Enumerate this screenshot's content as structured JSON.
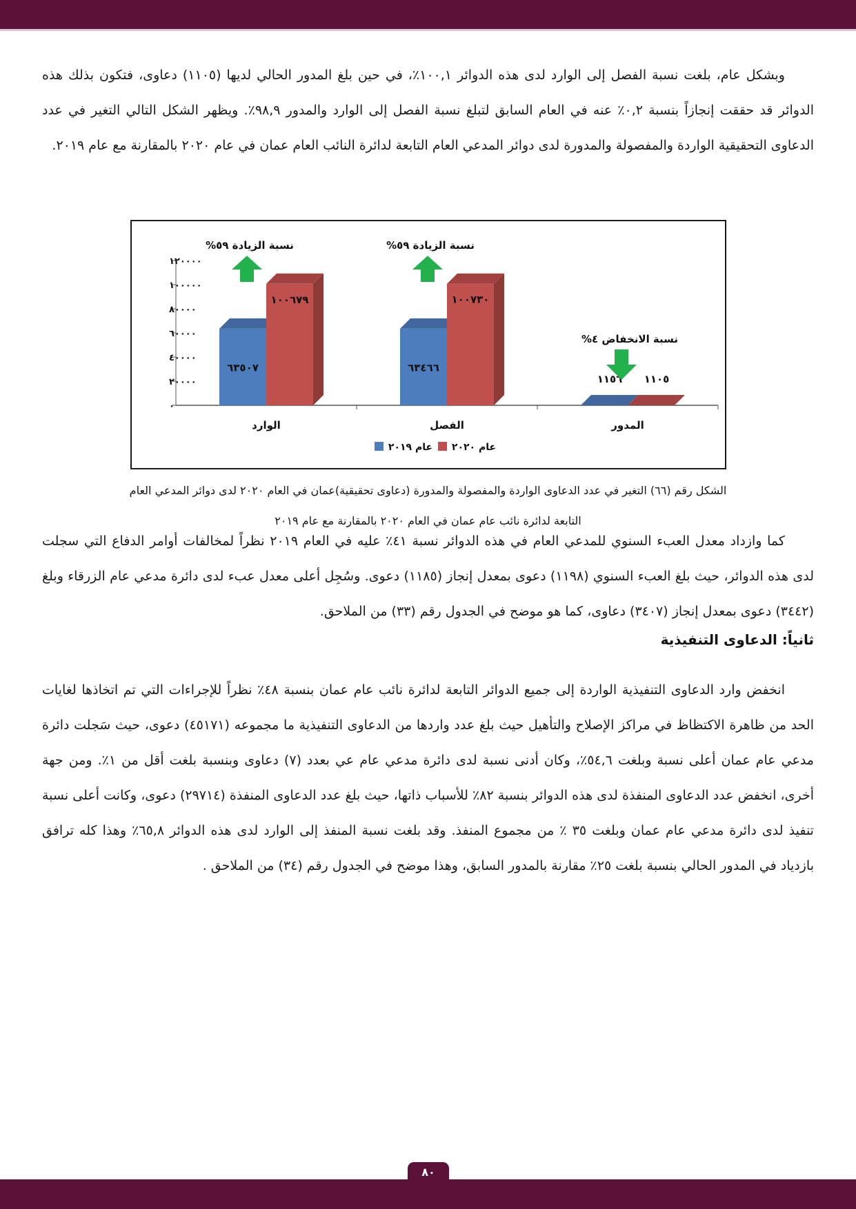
{
  "page": {
    "number": "٨٠"
  },
  "colors": {
    "accent": "#5c1138",
    "arrow_green": "#22b14c",
    "bar_2019": "#4e7dbd",
    "bar_2020": "#c0504d"
  },
  "paragraphs": {
    "overview": "وبشكل عام، بلغت نسبة الفصل إلى الوارد لدى هذه الدوائر ١٠٠,١٪، في حين بلغ المدور الحالي لديها (١١٠٥) دعاوى، فتكون بذلك هذه الدوائر قد حققت إنجازاً بنسبة ٠,٢٪ عنه في العام السابق لتبلغ نسبة الفصل إلى الوارد والمدور ٩٨,٩٪. ويظهر الشكل التالي التغير في عدد الدعاوى التحقيقية الواردة والمفصولة والمدورة لدى دوائر المدعي العام التابعة لدائرة النائب العام عمان في عام ٢٠٢٠ بالمقارنة مع عام ٢٠١٩.",
    "workload": "كما وازداد معدل العبء السنوي للمدعي العام في هذه الدوائر نسبة ٤١٪ عليه في العام ٢٠١٩ نظراً لمخالفات أوامر الدفاع التي سجلت لدى هذه الدوائر، حيث بلغ العبء السنوي (١١٩٨) دعوى بمعدل إنجاز (١١٨٥) دعوى. وسُجِل أعلى معدل عبء لدى دائرة مدعي عام الزرقاء وبلغ (٣٤٤٢) دعوى بمعدل إنجاز (٣٤٠٧) دعاوى، كما هو موضح في الجدول رقم (٣٣) من الملاحق.",
    "executive": "انخفض وارد الدعاوى التنفيذية الواردة إلى جميع الدوائر التابعة لدائرة نائب عام عمان بنسبة ٤٨٪ نظراً للإجراءات التي تم اتخاذها لغايات الحد من ظاهرة الاكتظاظ في مراكز الإصلاح والتأهيل حيث بلغ عدد واردها من الدعاوى التنفيذية ما مجموعه (٤٥١٧١) دعوى، حيث سَجلت دائرة مدعي عام عمان أعلى نسبة وبلغت ٥٤,٦٪، وكان أدنى نسبة لدى دائرة مدعي عام عي بعدد (٧) دعاوى وبنسبة بلغت أقل من ١٪. ومن جهة أخرى، انخفض عدد الدعاوى المنفذة لدى هذه الدوائر بنسبة ٨٢٪ للأسباب ذاتها، حيث بلغ عدد الدعاوى المنفذة (٢٩٧١٤) دعوى، وكانت أعلى نسبة تنفيذ لدى دائرة مدعي عام عمان وبلغت ٣٥ ٪ من مجموع المنفذ. وقد بلغت نسبة المنفذ إلى الوارد لدى هذه الدوائر ٦٥,٨٪ وهذا كله ترافق بازدياد في المدور الحالي بنسبة بلغت ٢٥٪ مقارنة بالمدور السابق، وهذا موضح في الجدول رقم (٣٤) من الملاحق ."
  },
  "section2_heading": "ثانياً: الدعاوى التنفيذية",
  "figure": {
    "caption_line1": "الشكل رقم (٦٦) التغير في عدد الدعاوى الواردة والمفصولة والمدورة (دعاوى تحقيقية)عمان في العام ٢٠٢٠ لدى دوائر المدعي العام",
    "caption_line2": "التابعة لدائرة نائب عام عمان في العام ٢٠٢٠ بالمقارنة مع عام ٢٠١٩"
  },
  "chart_data": {
    "type": "bar",
    "title": "",
    "categories": [
      "الوارد",
      "الفصل",
      "المدور"
    ],
    "series": [
      {
        "name": "عام ٢٠١٩",
        "color": "#4e7dbd",
        "top_color": "#41689e",
        "values": [
          63507,
          63466,
          1156
        ],
        "labels": [
          "٦٣٥٠٧",
          "٦٣٤٦٦",
          "١١٥٦"
        ]
      },
      {
        "name": "عام ٢٠٢٠",
        "color": "#c0504d",
        "top_color": "#a24240",
        "side_color": "#8e3a37",
        "values": [
          100679,
          100730,
          1105
        ],
        "labels": [
          "١٠٠٦٧٩",
          "١٠٠٧٣٠",
          "١١٠٥"
        ]
      }
    ],
    "ylim": [
      0,
      120000
    ],
    "ytick_step": 20000,
    "ytick_labels": [
      "٠",
      "٢٠٠٠٠",
      "٤٠٠٠٠",
      "٦٠٠٠٠",
      "٨٠٠٠٠",
      "١٠٠٠٠٠",
      "١٢٠٠٠٠"
    ],
    "grid": false,
    "legend_position": "bottom-center",
    "annotations": [
      {
        "text": "نسبة الزيادة ٥٩%",
        "arrow": "up",
        "category": 0
      },
      {
        "text": "نسبة الزيادة ٥٩%",
        "arrow": "up",
        "category": 1
      },
      {
        "text": "نسبة الانخفاض ٤%",
        "arrow": "down",
        "category": 2
      }
    ]
  }
}
